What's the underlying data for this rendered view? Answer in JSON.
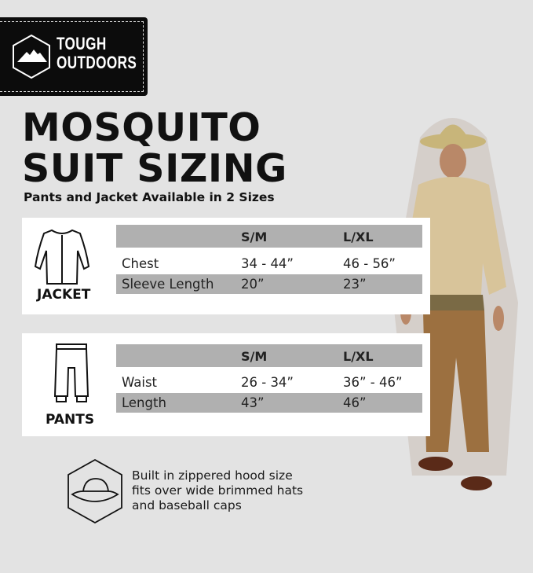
{
  "brand": {
    "line1": "TOUGH",
    "line2": "OUTDOORS"
  },
  "title": {
    "line1": "MOSQUITO",
    "line2": "SUIT SIZING"
  },
  "subtitle": "Pants and Jacket Available in 2 Sizes",
  "jacket": {
    "label": "JACKET",
    "headers": [
      "",
      "S/M",
      "L/XL"
    ],
    "rows": [
      {
        "name": "Chest",
        "sm": "34 - 44”",
        "lxl": "46 - 56”"
      },
      {
        "name": "Sleeve Length",
        "sm": "20”",
        "lxl": "23”"
      }
    ]
  },
  "pants": {
    "label": "PANTS",
    "headers": [
      "",
      "S/M",
      "L/XL"
    ],
    "rows": [
      {
        "name": "Waist",
        "sm": "26 - 34”",
        "lxl": "36” - 46”"
      },
      {
        "name": "Length",
        "sm": "43”",
        "lxl": "46”"
      }
    ]
  },
  "note": {
    "line1": "Built in zippered hood size",
    "line2": "fits over wide brimmed hats",
    "line3": "and baseball caps"
  },
  "icons": [
    "mountain-hexagon-logo",
    "jacket-icon",
    "pants-icon",
    "hat-hexagon-icon"
  ],
  "colors": {
    "background": "#e3e3e3",
    "logo_bg": "#0c0c0c",
    "row_gray": "#b0b0b0"
  }
}
